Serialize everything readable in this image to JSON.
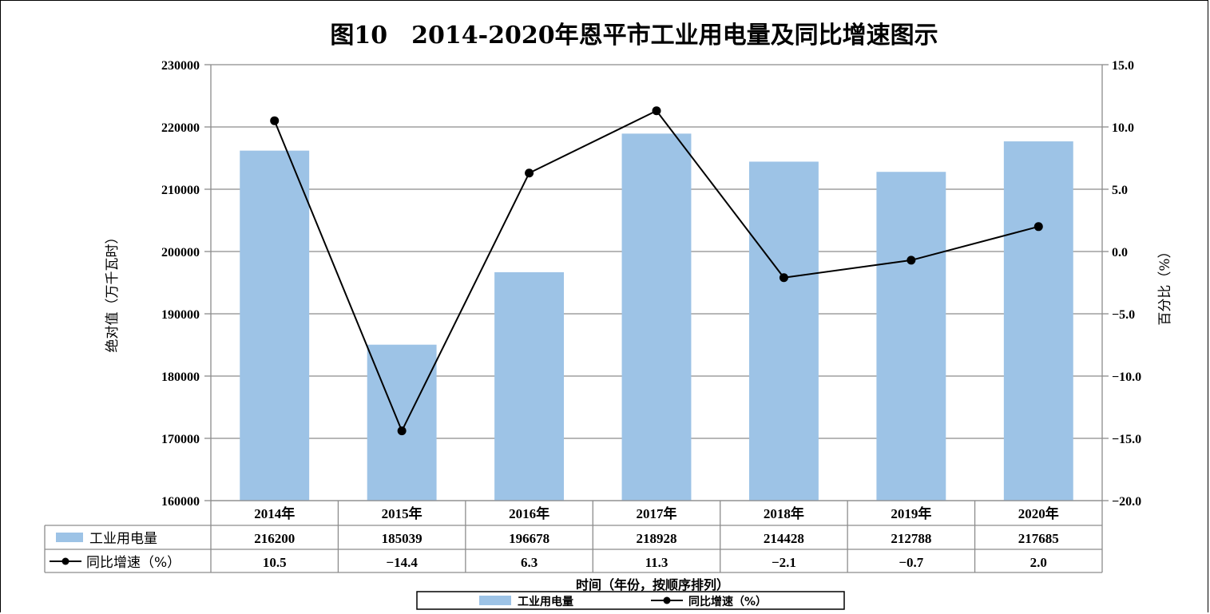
{
  "chart_data": {
    "type": "bar+line",
    "title": "图10　2014-2020年恩平市工业用电量及同比增速图示",
    "categories": [
      "2014年",
      "2015年",
      "2016年",
      "2017年",
      "2018年",
      "2019年",
      "2020年"
    ],
    "series": [
      {
        "name": "工业用电量",
        "type": "bar",
        "axis": "left",
        "color": "#9dc3e6",
        "values": [
          216200,
          185039,
          196678,
          218928,
          214428,
          212788,
          217685
        ],
        "labels": [
          "216200",
          "185039",
          "196678",
          "218928",
          "214428",
          "212788",
          "217685"
        ]
      },
      {
        "name": "同比增速（%）",
        "type": "line",
        "axis": "right",
        "color": "#000000",
        "values": [
          10.5,
          -14.4,
          6.3,
          11.3,
          -2.1,
          -0.7,
          2.0
        ],
        "labels": [
          "10.5",
          "−14.4",
          "6.3",
          "11.3",
          "−2.1",
          "−0.7",
          "2.0"
        ]
      }
    ],
    "y_left": {
      "label": "绝对值（万千瓦时）",
      "range": [
        160000,
        230000
      ],
      "ticks": [
        "230000",
        "220000",
        "210000",
        "200000",
        "190000",
        "180000",
        "170000",
        "160000"
      ]
    },
    "y_right": {
      "label": "百分比（%）",
      "range": [
        -20,
        15
      ],
      "ticks": [
        "15.0",
        "10.0",
        "5.0",
        "0.0",
        "−5.0",
        "−10.0",
        "−15.0",
        "−20.0"
      ]
    },
    "xlabel": "时间（年份，按顺序排列）",
    "grid": true,
    "legend_position": "bottom",
    "data_table": true
  }
}
